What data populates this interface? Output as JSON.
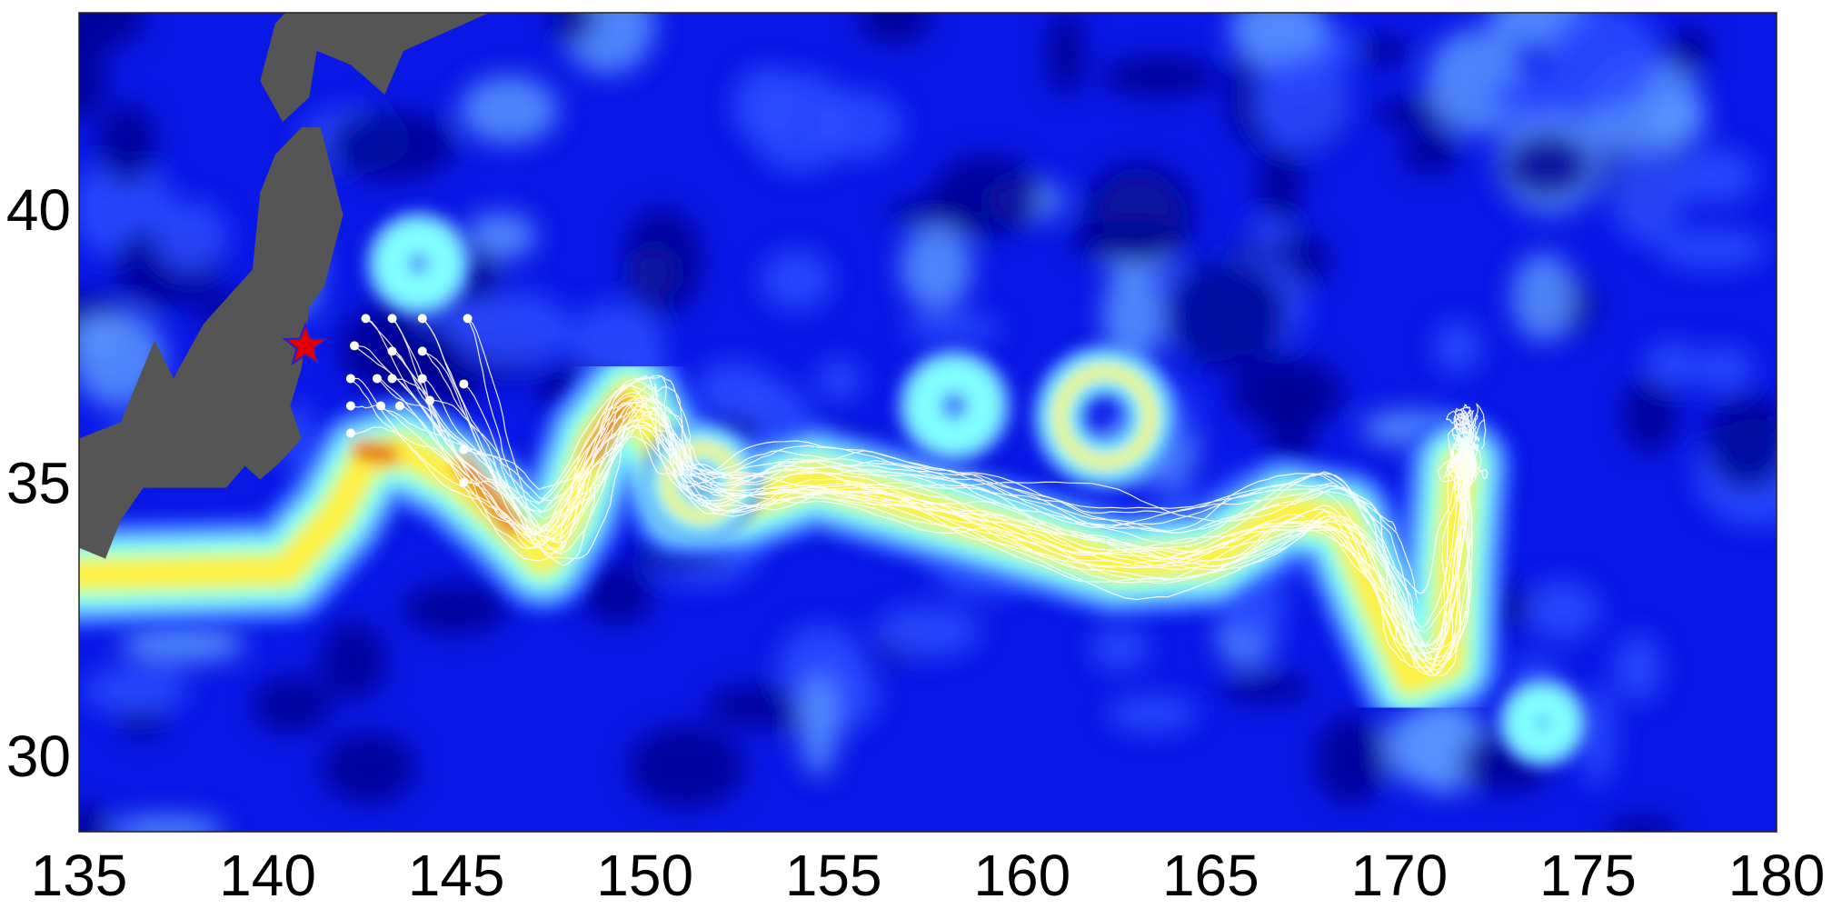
{
  "chart_data": {
    "type": "map",
    "xlim": [
      135,
      180
    ],
    "ylim": [
      28.6,
      43.6
    ],
    "x_ticks": [
      "135",
      "140",
      "145",
      "150",
      "155",
      "160",
      "165",
      "170",
      "175",
      "180"
    ],
    "y_ticks": [
      "30",
      "35",
      "40"
    ],
    "grid": false,
    "background_field": "contour fill of current speed, jet colormap (dark blue low to red high)",
    "colors": {
      "land": "#555555",
      "ocean_low": "#00008f",
      "ocean_mid": "#0a1ef0",
      "current_edge": "#5aa0ff",
      "current_cyan": "#80ffff",
      "current_yellow": "#fff040",
      "current_core": "#e06010",
      "trajectories": "#ffffff",
      "marker": "#e00000"
    },
    "marker": {
      "type": "star",
      "lon": 141.0,
      "lat": 37.5
    },
    "release_points": [
      [
        142.6,
        38.0
      ],
      [
        143.3,
        38.0
      ],
      [
        144.1,
        38.0
      ],
      [
        145.3,
        38.0
      ],
      [
        142.3,
        37.5
      ],
      [
        143.3,
        37.4
      ],
      [
        144.1,
        37.4
      ],
      [
        142.2,
        36.9
      ],
      [
        142.9,
        36.9
      ],
      [
        143.3,
        36.9
      ],
      [
        144.1,
        36.9
      ],
      [
        145.2,
        36.8
      ],
      [
        142.2,
        36.4
      ],
      [
        143.0,
        36.4
      ],
      [
        143.5,
        36.4
      ],
      [
        144.3,
        36.5
      ],
      [
        142.2,
        35.9
      ],
      [
        145.2,
        35.6
      ],
      [
        145.2,
        35.0
      ]
    ],
    "current_axis": [
      [
        135,
        33.3
      ],
      [
        138,
        33.35
      ],
      [
        140.5,
        33.4
      ],
      [
        141.8,
        34.4
      ],
      [
        142.6,
        35.4
      ],
      [
        143.6,
        35.6
      ],
      [
        145,
        35.1
      ],
      [
        146.3,
        34.3
      ],
      [
        147.3,
        33.6
      ],
      [
        148,
        34.4
      ],
      [
        148.7,
        35.8
      ],
      [
        149.6,
        36.6
      ],
      [
        150.4,
        35.6
      ],
      [
        151,
        34.6
      ],
      [
        152.5,
        34.6
      ],
      [
        154.5,
        35.1
      ],
      [
        157,
        34.6
      ],
      [
        160,
        34.0
      ],
      [
        162.5,
        33.5
      ],
      [
        165,
        33.6
      ],
      [
        167,
        34.5
      ],
      [
        168.5,
        34.3
      ],
      [
        169.4,
        32.8
      ],
      [
        170.3,
        31.4
      ],
      [
        171.3,
        31.7
      ],
      [
        171.4,
        33.5
      ],
      [
        171.6,
        35.3
      ]
    ],
    "eddies": [
      {
        "lon": 151.5,
        "lat": 35.0,
        "r": 0.9
      },
      {
        "lon": 162.2,
        "lat": 36.2,
        "r": 1.2
      },
      {
        "lon": 158.2,
        "lat": 36.4,
        "r": 0.8
      },
      {
        "lon": 144.0,
        "lat": 39.0,
        "r": 0.7
      },
      {
        "lon": 173.8,
        "lat": 30.6,
        "r": 0.5
      }
    ]
  }
}
